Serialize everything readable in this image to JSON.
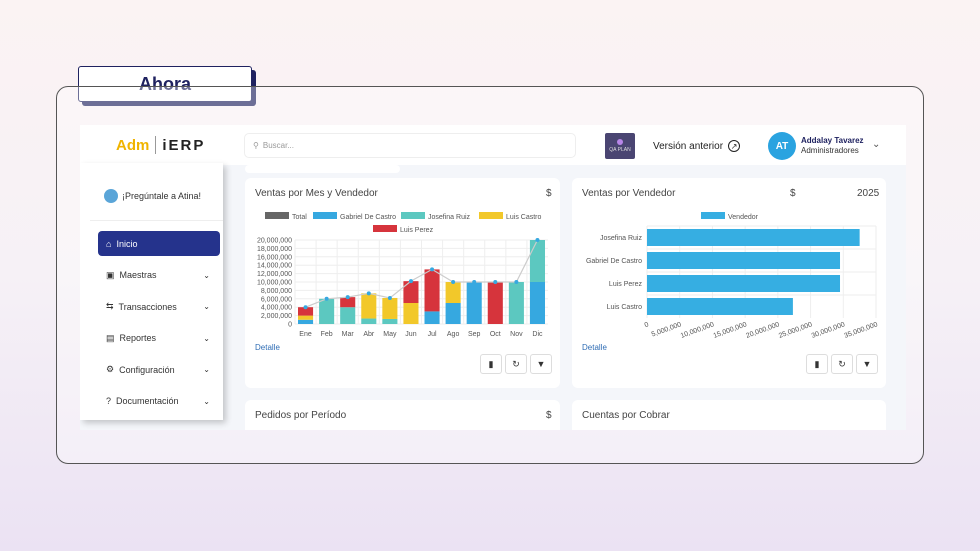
{
  "label": "Ahora",
  "header": {
    "logo_left": "Adm",
    "logo_sub": "CLOUD",
    "logo_right": "iERP",
    "search_placeholder": "Buscar...",
    "qa_label": "QA PLAN",
    "previous_version": "Versión anterior",
    "user_initials": "AT",
    "user_name": "Addalay Tavarez",
    "user_role": "Administradores"
  },
  "sidebar": {
    "assistant": "¡Pregúntale a Atina!",
    "items": [
      {
        "label": "Inicio",
        "icon": "home-icon",
        "active": true
      },
      {
        "label": "Maestras",
        "icon": "box-icon"
      },
      {
        "label": "Transacciones",
        "icon": "arrows-icon"
      },
      {
        "label": "Reportes",
        "icon": "report-icon"
      },
      {
        "label": "Configuración",
        "icon": "gear-icon"
      },
      {
        "label": "Documentación",
        "icon": "help-icon"
      }
    ]
  },
  "cards": {
    "c1": {
      "title": "Ventas por Mes y Vendedor",
      "currency": "$",
      "link": "Detalle"
    },
    "c2": {
      "title": "Ventas por Vendedor",
      "currency": "$",
      "year": "2025",
      "link": "Detalle"
    },
    "c3": {
      "title": "Pedidos por Período",
      "currency": "$"
    },
    "c4": {
      "title": "Cuentas por Cobrar"
    }
  },
  "chart_data": [
    {
      "type": "bar",
      "stacked": true,
      "categories": [
        "Ene",
        "Feb",
        "Mar",
        "Abr",
        "May",
        "Jun",
        "Jul",
        "Ago",
        "Sep",
        "Oct",
        "Nov",
        "Dic"
      ],
      "ylim": [
        0,
        20000000
      ],
      "yticks": [
        "0",
        "2,000,000",
        "4,000,000",
        "6,000,000",
        "8,000,000",
        "10,000,000",
        "12,000,000",
        "14,000,000",
        "16,000,000",
        "18,000,000",
        "20,000,000"
      ],
      "legend": "top",
      "grid": true,
      "series": [
        {
          "name": "Gabriel De Castro",
          "color": "#36a8e0",
          "values": [
            1000000,
            0,
            0,
            0,
            0,
            0,
            3000000,
            5000000,
            10000000,
            0,
            0,
            10000000
          ]
        },
        {
          "name": "Josefina Ruiz",
          "color": "#5cc8c0",
          "values": [
            0,
            6000000,
            4000000,
            1300000,
            1200000,
            0,
            0,
            0,
            0,
            0,
            10000000,
            10000000
          ]
        },
        {
          "name": "Luis Castro",
          "color": "#f2c82a",
          "values": [
            1000000,
            0,
            0,
            6000000,
            5000000,
            5000000,
            0,
            5000000,
            0,
            0,
            0,
            0
          ]
        },
        {
          "name": "Luis Perez",
          "color": "#d6343c",
          "values": [
            2000000,
            0,
            2400000,
            0,
            0,
            5200000,
            10000000,
            0,
            0,
            10000000,
            0,
            0
          ]
        }
      ],
      "total": {
        "name": "Total",
        "color": "#666666",
        "values": [
          4000000,
          6000000,
          6400000,
          7300000,
          6200000,
          10200000,
          13000000,
          10000000,
          10000000,
          10000000,
          10000000,
          20000000
        ]
      }
    },
    {
      "type": "bar",
      "orientation": "horizontal",
      "categories": [
        "Josefina Ruiz",
        "Gabriel De Castro",
        "Luis Perez",
        "Luis Castro"
      ],
      "series": [
        {
          "name": "Vendedor",
          "color": "#36aee2",
          "values": [
            32500000,
            29500000,
            29500000,
            22300000
          ]
        }
      ],
      "xlim": [
        0,
        35000000
      ],
      "xticks": [
        "0",
        "5,000,000",
        "10,000,000",
        "15,000,000",
        "20,000,000",
        "25,000,000",
        "30,000,000",
        "35,000,000"
      ],
      "legend": "top",
      "grid": true
    }
  ]
}
